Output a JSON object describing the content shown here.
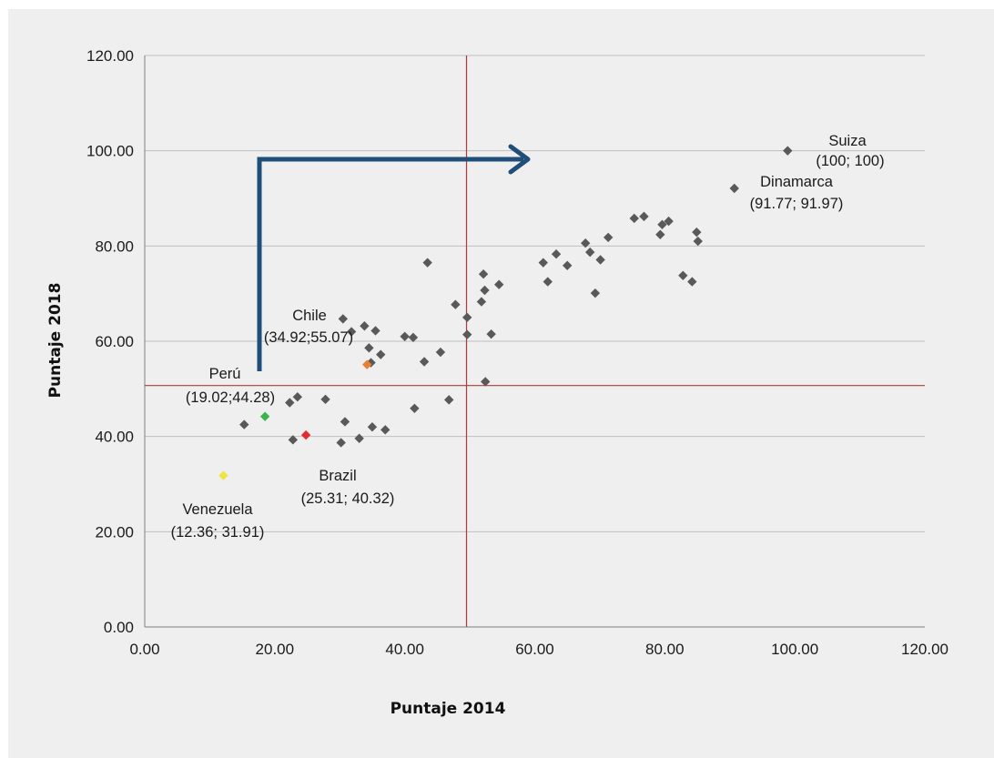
{
  "chart_data": {
    "type": "scatter",
    "title": "",
    "xlabel": "Puntaje 2014",
    "ylabel": "Puntaje 2018",
    "xlim": [
      0,
      120
    ],
    "ylim": [
      0,
      120
    ],
    "x_ticks": [
      "0.00",
      "20.00",
      "40.00",
      "60.00",
      "80.00",
      "100.00",
      "120.00"
    ],
    "y_ticks": [
      "0.00",
      "20.00",
      "40.00",
      "60.00",
      "80.00",
      "100.00",
      "120.00"
    ],
    "grid": "horizontal",
    "reference_lines": {
      "x": 49.5,
      "y": 50.7
    },
    "colors": {
      "default_point": "#595959",
      "grid": "#bfbfbf",
      "reference": "#b03a3a",
      "arrow": "#1f4e79",
      "peru": "#3cb44b",
      "brazil": "#e8292f",
      "chile": "#ed7d31",
      "venezuela": "#f0e442"
    },
    "highlighted_points": [
      {
        "id": "suiza",
        "name": "Suiza",
        "label": "(100; 100)",
        "x": 98.9,
        "y": 100,
        "color": "#595959"
      },
      {
        "id": "dinamarca",
        "name": "Dinamarca",
        "label": "(91.77; 91.97)",
        "x": 90.7,
        "y": 92.1,
        "color": "#595959"
      },
      {
        "id": "chile",
        "name": "Chile",
        "label": "(34.92;55.07)",
        "x": 34.2,
        "y": 55.1,
        "color": "#ed7d31"
      },
      {
        "id": "peru",
        "name": "Perú",
        "label": "(19.02;44.28)",
        "x": 18.5,
        "y": 44.2,
        "color": "#3cb44b"
      },
      {
        "id": "brazil",
        "name": "Brazil",
        "label": "(25.31; 40.32)",
        "x": 24.8,
        "y": 40.3,
        "color": "#e8292f"
      },
      {
        "id": "venezuela",
        "name": "Venezuela",
        "label": "(12.36; 31.91)",
        "x": 12.1,
        "y": 31.8,
        "color": "#f0e442"
      }
    ],
    "points": [
      {
        "x": 15.3,
        "y": 42.5
      },
      {
        "x": 22.3,
        "y": 47.1
      },
      {
        "x": 22.8,
        "y": 39.3
      },
      {
        "x": 23.5,
        "y": 48.3
      },
      {
        "x": 27.8,
        "y": 47.8
      },
      {
        "x": 30.2,
        "y": 38.7
      },
      {
        "x": 30.5,
        "y": 64.7
      },
      {
        "x": 30.8,
        "y": 43.1
      },
      {
        "x": 31.8,
        "y": 62.0
      },
      {
        "x": 33.0,
        "y": 39.6
      },
      {
        "x": 33.8,
        "y": 63.2
      },
      {
        "x": 34.5,
        "y": 58.6
      },
      {
        "x": 34.8,
        "y": 55.5
      },
      {
        "x": 35.0,
        "y": 42.0
      },
      {
        "x": 35.5,
        "y": 62.2
      },
      {
        "x": 36.3,
        "y": 57.2
      },
      {
        "x": 37.0,
        "y": 41.4
      },
      {
        "x": 40.0,
        "y": 61.0
      },
      {
        "x": 41.3,
        "y": 60.8
      },
      {
        "x": 41.5,
        "y": 45.9
      },
      {
        "x": 43.0,
        "y": 55.7
      },
      {
        "x": 43.5,
        "y": 76.5
      },
      {
        "x": 45.5,
        "y": 57.7
      },
      {
        "x": 46.8,
        "y": 47.7
      },
      {
        "x": 47.8,
        "y": 67.7
      },
      {
        "x": 49.6,
        "y": 61.4
      },
      {
        "x": 49.6,
        "y": 65.0
      },
      {
        "x": 51.8,
        "y": 68.3
      },
      {
        "x": 52.1,
        "y": 74.1
      },
      {
        "x": 52.3,
        "y": 70.7
      },
      {
        "x": 52.4,
        "y": 51.5
      },
      {
        "x": 53.3,
        "y": 61.5
      },
      {
        "x": 54.5,
        "y": 71.9
      },
      {
        "x": 61.3,
        "y": 76.5
      },
      {
        "x": 62.0,
        "y": 72.5
      },
      {
        "x": 63.3,
        "y": 78.3
      },
      {
        "x": 65.0,
        "y": 75.9
      },
      {
        "x": 67.8,
        "y": 80.6
      },
      {
        "x": 68.5,
        "y": 78.7
      },
      {
        "x": 69.3,
        "y": 70.1
      },
      {
        "x": 70.1,
        "y": 77.1
      },
      {
        "x": 71.3,
        "y": 81.8
      },
      {
        "x": 75.3,
        "y": 85.8
      },
      {
        "x": 76.8,
        "y": 86.2
      },
      {
        "x": 79.3,
        "y": 82.4
      },
      {
        "x": 79.6,
        "y": 84.5
      },
      {
        "x": 80.6,
        "y": 85.2
      },
      {
        "x": 82.8,
        "y": 73.8
      },
      {
        "x": 84.2,
        "y": 72.5
      },
      {
        "x": 84.9,
        "y": 82.9
      },
      {
        "x": 85.1,
        "y": 81.0
      }
    ]
  }
}
